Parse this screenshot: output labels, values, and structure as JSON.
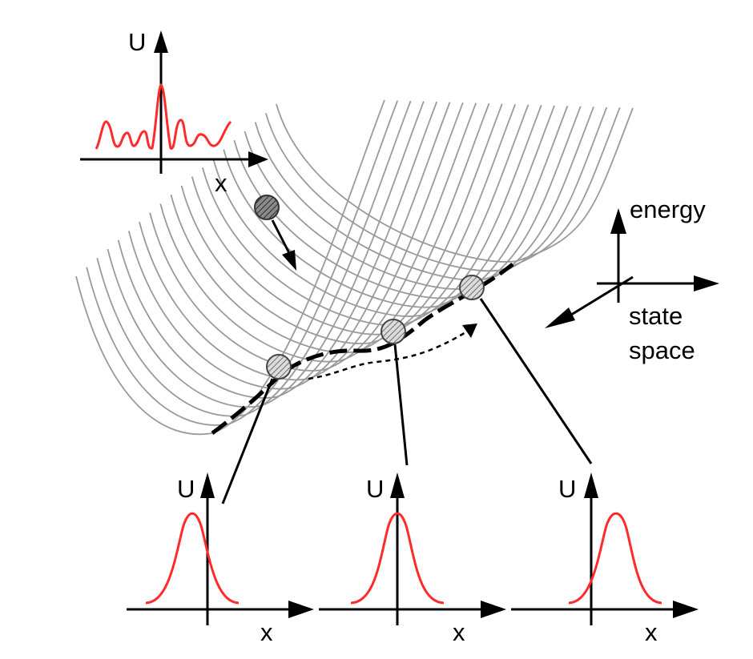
{
  "labels": {
    "inset_top_y_axis": "U",
    "inset_top_x_axis": "x",
    "inset_left_y_axis": "U",
    "inset_left_x_axis": "x",
    "inset_mid_y_axis": "U",
    "inset_mid_x_axis": "x",
    "inset_right_y_axis": "U",
    "inset_right_x_axis": "x",
    "axis_energy": "energy",
    "axis_state_line1": "state",
    "axis_state_line2": "space"
  },
  "colors": {
    "profile_curve": "#ff2a2a",
    "landscape_lines": "#9a9a9a",
    "axes": "#000000",
    "ball_fill": "#7a7a7a",
    "ball_marker_fill": "#dddddd"
  },
  "icons": {
    "ball": "hatched-sphere",
    "marker": "hatched-circle-marker"
  }
}
